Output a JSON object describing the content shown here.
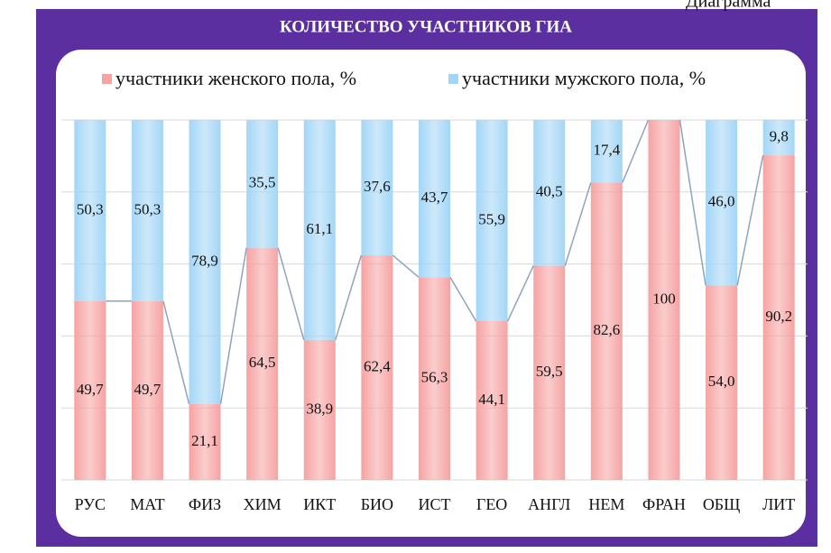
{
  "chart_data": {
    "type": "stacked_bar",
    "corner_text": "Диаграмма",
    "title": "КОЛИЧЕСТВО УЧАСТНИКОВ ГИА",
    "categories": [
      "РУС",
      "МАТ",
      "ФИЗ",
      "ХИМ",
      "ИКТ",
      "БИО",
      "ИСТ",
      "ГЕО",
      "АНГЛ",
      "НЕМ",
      "ФРАН",
      "ОБЩ",
      "ЛИТ"
    ],
    "series": [
      {
        "name": "участники женского пола, %",
        "color": "#f6a3a3",
        "values": [
          49.7,
          49.7,
          21.1,
          64.5,
          38.9,
          62.4,
          56.3,
          44.1,
          59.5,
          82.6,
          100,
          54.0,
          90.2
        ],
        "value_labels": [
          "49,7",
          "49,7",
          "21,1",
          "64,5",
          "38,9",
          "62,4",
          "56,3",
          "44,1",
          "59,5",
          "82,6",
          "100",
          "54,0",
          "90,2"
        ]
      },
      {
        "name": "участники мужского пола, %",
        "color": "#a3d6f6",
        "values": [
          50.3,
          50.3,
          78.9,
          35.5,
          61.1,
          37.6,
          43.7,
          55.9,
          40.5,
          17.4,
          0,
          46.0,
          9.8
        ],
        "value_labels": [
          "50,3",
          "50,3",
          "78,9",
          "35,5",
          "61,1",
          "37,6",
          "43,7",
          "55,9",
          "40,5",
          "17,4",
          null,
          "46,0",
          "9,8"
        ]
      }
    ],
    "ylim": [
      0,
      100
    ],
    "yticks": [
      0,
      20,
      40,
      60,
      80,
      100
    ],
    "grid": true,
    "legend": "top",
    "series_lines": true
  }
}
